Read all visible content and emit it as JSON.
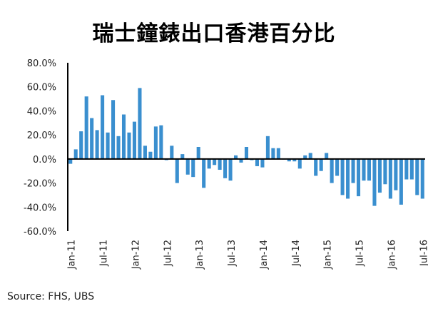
{
  "chart_data": {
    "type": "bar",
    "title": "瑞士鐘錶出口香港百分比",
    "source": "Source: FHS, UBS",
    "xlabel": "",
    "ylabel": "",
    "ylim": [
      -60,
      80
    ],
    "yticks": [
      "80.0%",
      "60.0%",
      "40.0%",
      "20.0%",
      "0.0%",
      "-20.0%",
      "-40.0%",
      "-60.0%"
    ],
    "ytick_values": [
      80,
      60,
      40,
      20,
      0,
      -20,
      -40,
      -60
    ],
    "xtick_labels": [
      "Jan-11",
      "Jul-11",
      "Jan-12",
      "Jul-12",
      "Jan-13",
      "Jul-13",
      "Jan-14",
      "Jul-14",
      "Jan-15",
      "Jul-15",
      "Jan-16",
      "Jul-16"
    ],
    "start_month": "Jan-11",
    "bar_color": "#3a8fcf",
    "values": [
      -4,
      8,
      23,
      52,
      34,
      24,
      53,
      22,
      49,
      19,
      37,
      22,
      31,
      59,
      11,
      6,
      27,
      28,
      -1,
      11,
      -20,
      4,
      -13,
      -15,
      10,
      -24,
      -8,
      -5,
      -9,
      -16,
      -18,
      3,
      -3,
      10,
      -1,
      -6,
      -7,
      19,
      9,
      9,
      0,
      -2,
      -2,
      -8,
      3,
      5,
      -14,
      -10,
      5,
      -20,
      -14,
      -30,
      -33,
      -20,
      -31,
      -18,
      -18,
      -39,
      -28,
      -21,
      -33,
      -26,
      -38,
      -17,
      -17,
      -30,
      -33
    ]
  }
}
